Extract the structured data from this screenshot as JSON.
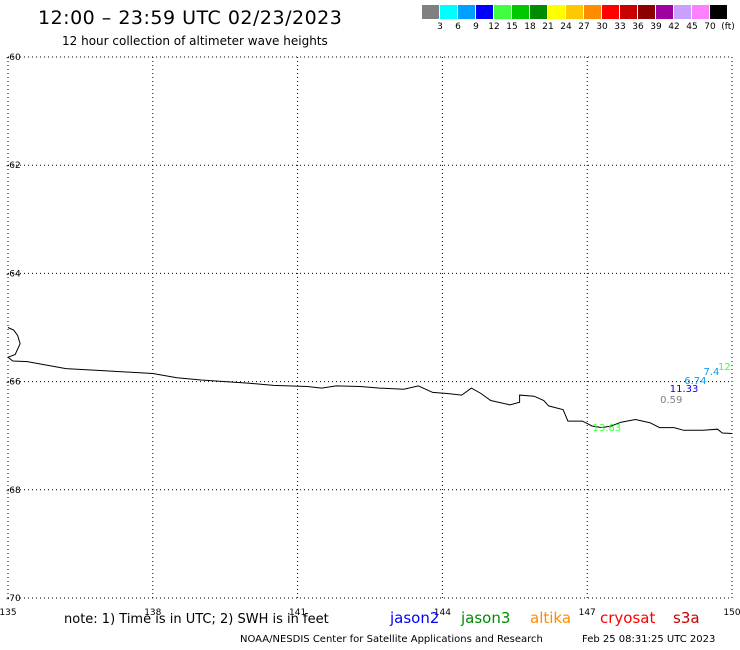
{
  "header": {
    "title": "12:00 – 23:59 UTC 02/23/2023",
    "subtitle": "12 hour collection of altimeter wave heights"
  },
  "legend": {
    "unit": "(ft)",
    "items": [
      {
        "label": "3",
        "color": "#808080"
      },
      {
        "label": "6",
        "color": "#00ffff"
      },
      {
        "label": "9",
        "color": "#00a0ff"
      },
      {
        "label": "12",
        "color": "#0000ff"
      },
      {
        "label": "15",
        "color": "#40ff40"
      },
      {
        "label": "18",
        "color": "#00c800"
      },
      {
        "label": "21",
        "color": "#008c00"
      },
      {
        "label": "24",
        "color": "#ffff00"
      },
      {
        "label": "27",
        "color": "#ffc800"
      },
      {
        "label": "30",
        "color": "#ff8c00"
      },
      {
        "label": "33",
        "color": "#ff0000"
      },
      {
        "label": "36",
        "color": "#c80000"
      },
      {
        "label": "39",
        "color": "#8c0000"
      },
      {
        "label": "42",
        "color": "#a000a0"
      },
      {
        "label": "45",
        "color": "#c8a0ff"
      },
      {
        "label": "70",
        "color": "#ff80ff"
      },
      {
        "label": "",
        "color": "#000000"
      }
    ]
  },
  "map": {
    "lon_range": [
      135,
      150
    ],
    "lat_range": [
      -70,
      -60
    ],
    "lon_ticks": [
      "135",
      "138",
      "141",
      "144",
      "147",
      "150"
    ],
    "lat_ticks": [
      "-60",
      "-62",
      "-64",
      "-66",
      "-68",
      "-70"
    ],
    "grid": "dotted",
    "coastline": [
      [
        135.0,
        -65.0
      ],
      [
        135.12,
        -65.05
      ],
      [
        135.2,
        -65.15
      ],
      [
        135.25,
        -65.3
      ],
      [
        135.15,
        -65.5
      ],
      [
        135.0,
        -65.55
      ],
      [
        135.1,
        -65.62
      ],
      [
        135.4,
        -65.63
      ],
      [
        135.7,
        -65.68
      ],
      [
        136.2,
        -65.76
      ],
      [
        137.0,
        -65.8
      ],
      [
        138.0,
        -65.85
      ],
      [
        138.5,
        -65.93
      ],
      [
        139.0,
        -65.97
      ],
      [
        139.5,
        -66.0
      ],
      [
        140.0,
        -66.03
      ],
      [
        140.5,
        -66.07
      ],
      [
        141.2,
        -66.09
      ],
      [
        141.5,
        -66.12
      ],
      [
        141.8,
        -66.08
      ],
      [
        142.3,
        -66.09
      ],
      [
        142.7,
        -66.12
      ],
      [
        143.2,
        -66.14
      ],
      [
        143.5,
        -66.08
      ],
      [
        143.8,
        -66.2
      ],
      [
        144.1,
        -66.22
      ],
      [
        144.4,
        -66.25
      ],
      [
        144.6,
        -66.12
      ],
      [
        144.8,
        -66.22
      ],
      [
        145.0,
        -66.35
      ],
      [
        145.4,
        -66.43
      ],
      [
        145.6,
        -66.38
      ],
      [
        145.6,
        -66.25
      ],
      [
        145.9,
        -66.27
      ],
      [
        146.1,
        -66.35
      ],
      [
        146.2,
        -66.45
      ],
      [
        146.5,
        -66.52
      ],
      [
        146.6,
        -66.73
      ],
      [
        146.9,
        -66.73
      ],
      [
        147.1,
        -66.82
      ],
      [
        147.3,
        -66.85
      ],
      [
        147.5,
        -66.82
      ],
      [
        147.7,
        -66.75
      ],
      [
        148.0,
        -66.7
      ],
      [
        148.3,
        -66.76
      ],
      [
        148.5,
        -66.85
      ],
      [
        148.8,
        -66.85
      ],
      [
        149.0,
        -66.9
      ],
      [
        149.4,
        -66.9
      ],
      [
        149.7,
        -66.88
      ],
      [
        149.8,
        -66.95
      ],
      [
        150.0,
        -66.96
      ]
    ],
    "observations": [
      {
        "lon": 150.0,
        "lat": -65.74,
        "text": "12",
        "color": "#40ff40"
      },
      {
        "lon": 149.7,
        "lat": -65.84,
        "text": "7.4",
        "color": "#00a0ff"
      },
      {
        "lon": 149.3,
        "lat": -66.0,
        "text": "6.74",
        "color": "#00a0ff"
      },
      {
        "lon": 149.0,
        "lat": -66.15,
        "text": "11.33",
        "color": "#0000ff"
      },
      {
        "lon": 148.8,
        "lat": -66.36,
        "text": "0.59",
        "color": "#808080"
      },
      {
        "lon": 147.4,
        "lat": -66.87,
        "text": "13.63",
        "color": "#40ff40"
      }
    ]
  },
  "footer": {
    "note": "note: 1) Time is in UTC; 2) SWH is in feet",
    "satellites": [
      {
        "name": "jason2",
        "color": "#0000ff"
      },
      {
        "name": "jason3",
        "color": "#008c00"
      },
      {
        "name": "altika",
        "color": "#ff8c00"
      },
      {
        "name": "cryosat",
        "color": "#ff0000"
      },
      {
        "name": "s3a",
        "color": "#c80000"
      }
    ],
    "center": "NOAA/NESDIS Center for Satellite Applications and Research",
    "date": "Feb 25 08:31:25 UTC 2023"
  }
}
